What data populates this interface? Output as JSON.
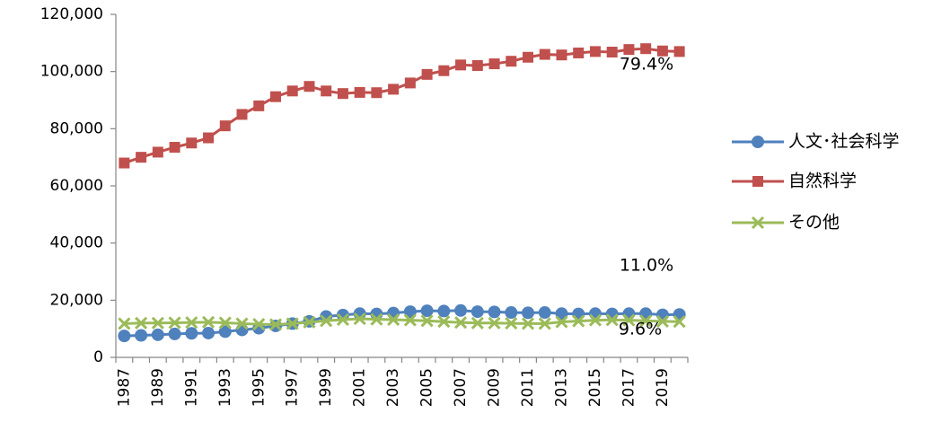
{
  "chart_data": {
    "type": "line",
    "categories": [
      "1987",
      null,
      "1989",
      null,
      "1991",
      null,
      "1993",
      null,
      "1995",
      null,
      "1997",
      null,
      "1999",
      null,
      "2001",
      null,
      "2003",
      null,
      "2005",
      null,
      "2007",
      null,
      "2009",
      null,
      "2011",
      null,
      "2013",
      null,
      "2015",
      null,
      "2017",
      null,
      "2019",
      null
    ],
    "series": [
      {
        "name": "人文･社会科学",
        "color": "#4f81bd",
        "marker": "circle",
        "values": [
          7500,
          7700,
          7900,
          8200,
          8400,
          8500,
          9000,
          9600,
          10200,
          11000,
          11800,
          12600,
          14300,
          14800,
          15300,
          15200,
          15500,
          16000,
          16300,
          16200,
          16400,
          16000,
          15900,
          15700,
          15600,
          15700,
          15300,
          15200,
          15300,
          15200,
          15300,
          15300,
          14900,
          15000
        ]
      },
      {
        "name": "自然科学",
        "color": "#c0504d",
        "marker": "square",
        "values": [
          68000,
          70000,
          71800,
          73500,
          75000,
          76800,
          81000,
          85000,
          88000,
          91200,
          93200,
          94800,
          93200,
          92300,
          92700,
          92600,
          93800,
          96000,
          99000,
          100300,
          102300,
          102100,
          102700,
          103600,
          105000,
          106000,
          105800,
          106500,
          107000,
          106800,
          107700,
          108000,
          107200,
          107000
        ]
      },
      {
        "name": "その他",
        "color": "#9bbb59",
        "marker": "x",
        "values": [
          11800,
          12000,
          12000,
          12100,
          12200,
          12300,
          12100,
          11800,
          11600,
          11500,
          11800,
          12300,
          12800,
          13200,
          13500,
          13300,
          13200,
          13000,
          12800,
          12500,
          12200,
          12000,
          12000,
          11900,
          11800,
          11800,
          12400,
          12700,
          13000,
          13100,
          13000,
          12800,
          12600,
          12500
        ]
      }
    ],
    "ylim": [
      0,
      120000
    ],
    "yticks": [
      0,
      {
        "value": 20000,
        "label": "20,000"
      },
      {
        "value": 40000,
        "label": "40,000"
      },
      {
        "value": 60000,
        "label": "60,000"
      },
      {
        "value": 80000,
        "label": "80,000"
      },
      {
        "value": 100000,
        "label": "100,000"
      },
      {
        "value": 120000,
        "label": "120,000"
      }
    ],
    "annotations": [
      "79.4%",
      "11.0%",
      "9.6%"
    ],
    "legend": "right"
  }
}
